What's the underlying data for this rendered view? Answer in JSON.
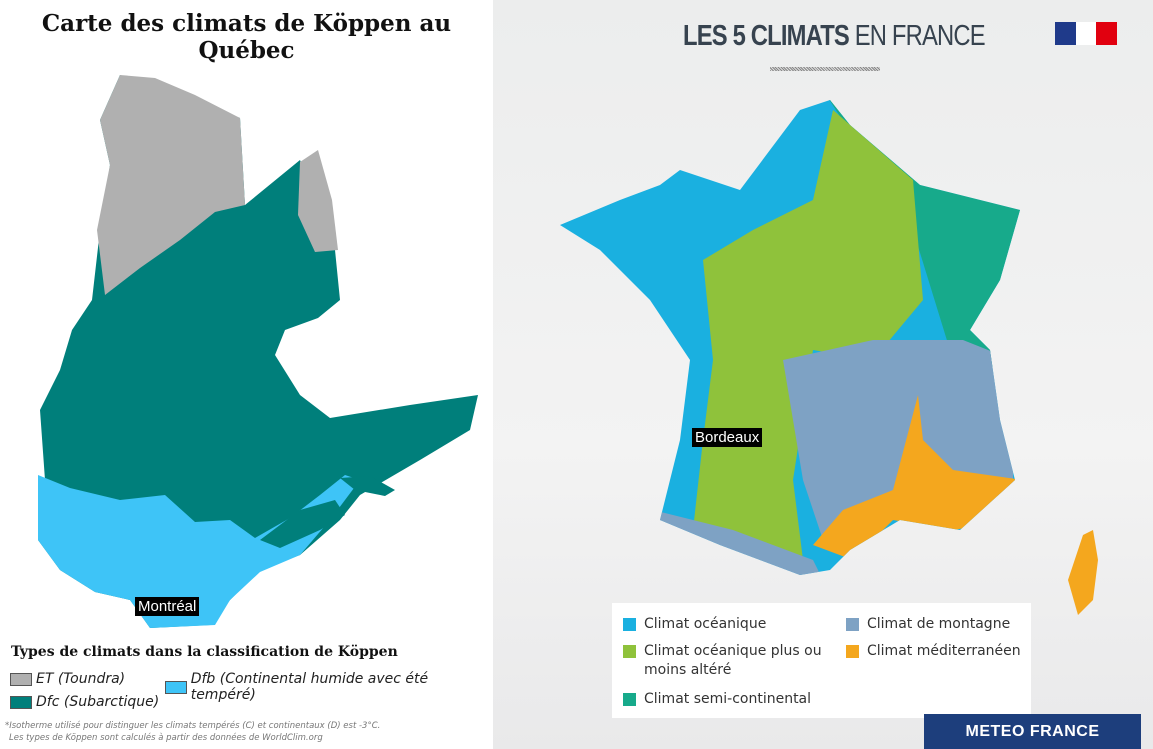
{
  "quebec": {
    "title": "Carte des climats de Köppen au Québec",
    "city_label": "Montréal",
    "legend_title": "Types de climats dans la classification de Köppen",
    "legend": [
      {
        "label": "ET (Toundra)",
        "color": "#b0b0b0"
      },
      {
        "label": "Dfb (Continental humide avec été tempéré)",
        "color": "#3ec4f7"
      },
      {
        "label": "Dfc (Subarctique)",
        "color": "#007f7b"
      }
    ],
    "footnote_1": "*Isotherme utilisé pour distinguer les climats tempérés (C) et continentaux (D) est -3°C.",
    "footnote_2": "Les types de Köppen sont calculés à partir des données de WorldClim.org"
  },
  "france": {
    "title_bold": "LES 5 CLIMATS",
    "title_light": "EN FRANCE",
    "city_label": "Bordeaux",
    "legend": [
      {
        "label": "Climat océanique",
        "color": "#1ab0e0"
      },
      {
        "label": "Climat de montagne",
        "color": "#7ea2c4"
      },
      {
        "label": "Climat océanique plus ou moins altéré",
        "color": "#8fc23b"
      },
      {
        "label": "Climat méditerranéen",
        "color": "#f4a71e"
      },
      {
        "label": "Climat semi-continental",
        "color": "#17aa8b"
      }
    ],
    "brand": "METEO FRANCE"
  }
}
